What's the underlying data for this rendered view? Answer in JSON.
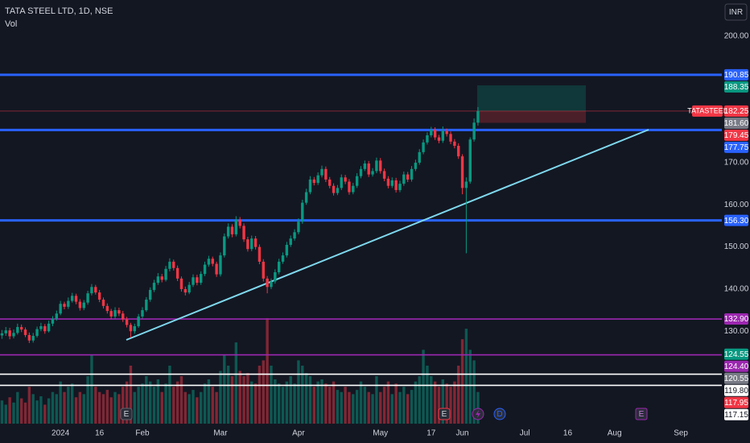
{
  "header": {
    "title": "TATA STEEL LTD, 1D, NSE",
    "indicator": "Vol",
    "currency": "INR"
  },
  "events": [
    {
      "label": "E"
    },
    {
      "label": "E"
    },
    {
      "label": "D"
    },
    {
      "label": "E"
    }
  ],
  "chart_data": {
    "type": "candlestick",
    "up_color": "#089981",
    "down_color": "#f23645",
    "ylim": [
      107.3,
      208.6
    ],
    "xlim": [
      -0.5,
      184.5
    ],
    "yticks": [
      {
        "value": 130,
        "label": "130.00"
      },
      {
        "value": 140,
        "label": "140.00"
      },
      {
        "value": 150,
        "label": "150.00"
      },
      {
        "value": 160,
        "label": "160.00"
      },
      {
        "value": 170,
        "label": "170.00"
      },
      {
        "value": 200,
        "label": "200.00"
      }
    ],
    "xticks": [
      {
        "value": 15,
        "label": "2024"
      },
      {
        "value": 25,
        "label": "16"
      },
      {
        "value": 36,
        "label": "Feb"
      },
      {
        "value": 56,
        "label": "Mar"
      },
      {
        "value": 76,
        "label": "Apr"
      },
      {
        "value": 97,
        "label": "May"
      },
      {
        "value": 110,
        "label": "17"
      },
      {
        "value": 118,
        "label": "Jun"
      },
      {
        "value": 134,
        "label": "Jul"
      },
      {
        "value": 145,
        "label": "16"
      },
      {
        "value": 157,
        "label": "Aug"
      },
      {
        "value": 174,
        "label": "Sep"
      }
    ],
    "levels": [
      {
        "value": 190.85,
        "label": "190.85",
        "color": "#2962ff",
        "line": "thick"
      },
      {
        "value": 188.35,
        "label": "188.35",
        "color": "#089981"
      },
      {
        "value": 182.25,
        "label": "182.25",
        "color": "#f23645",
        "line": "thin",
        "tag": "TATASTEEL"
      },
      {
        "value": 181.6,
        "label": "181.60",
        "color": "#787b86"
      },
      {
        "value": 179.45,
        "label": "179.45",
        "color": "#f23645"
      },
      {
        "value": 177.75,
        "label": "177.75",
        "color": "#2962ff",
        "line": "thick"
      },
      {
        "value": 156.3,
        "label": "156.30",
        "color": "#2962ff",
        "line": "thick"
      },
      {
        "value": 132.9,
        "label": "132.90",
        "color": "#9c27b0",
        "line": "medium"
      },
      {
        "value": 124.55,
        "label": "124.55",
        "color": "#089981"
      },
      {
        "value": 124.4,
        "label": "124.40",
        "color": "#9c27b0",
        "line": "medium"
      },
      {
        "value": 120.55,
        "label": "120.55",
        "color": "#787b86"
      },
      {
        "value": 119.8,
        "label": "119.80",
        "color": "#ffffff",
        "line": "medium"
      },
      {
        "value": 117.95,
        "label": "117.95",
        "color": "#f23645"
      },
      {
        "value": 117.15,
        "label": "117.15",
        "color": "#ffffff",
        "line": "medium"
      }
    ],
    "ohlc": [
      [
        129.0,
        130.3,
        128.2,
        129.5
      ],
      [
        129.5,
        131.0,
        128.9,
        130.2
      ],
      [
        130.2,
        130.8,
        128.1,
        128.8
      ],
      [
        128.8,
        130.4,
        128.3,
        129.6
      ],
      [
        129.6,
        131.8,
        129.2,
        131.0
      ],
      [
        131.0,
        131.6,
        129.8,
        130.4
      ],
      [
        130.4,
        130.9,
        128.6,
        129.1
      ],
      [
        129.1,
        129.7,
        127.2,
        127.8
      ],
      [
        127.8,
        129.6,
        127.3,
        128.9
      ],
      [
        128.9,
        131.1,
        128.5,
        130.5
      ],
      [
        130.5,
        132.0,
        130.0,
        131.2
      ],
      [
        131.2,
        131.7,
        129.4,
        130.0
      ],
      [
        130.0,
        132.5,
        129.7,
        131.8
      ],
      [
        131.8,
        133.6,
        131.2,
        133.0
      ],
      [
        133.0,
        134.9,
        132.5,
        134.2
      ],
      [
        134.2,
        137.2,
        133.8,
        136.5
      ],
      [
        136.5,
        137.0,
        135.2,
        135.8
      ],
      [
        135.8,
        138.0,
        135.3,
        137.2
      ],
      [
        137.2,
        139.1,
        136.8,
        138.4
      ],
      [
        138.4,
        138.9,
        136.4,
        137.0
      ],
      [
        137.0,
        137.6,
        134.9,
        135.5
      ],
      [
        135.5,
        137.4,
        135.0,
        136.8
      ],
      [
        136.8,
        139.6,
        136.3,
        139.0
      ],
      [
        139.0,
        141.2,
        138.5,
        140.5
      ],
      [
        140.5,
        141.0,
        138.7,
        139.2
      ],
      [
        139.2,
        139.8,
        136.9,
        137.5
      ],
      [
        137.5,
        138.0,
        135.4,
        136.0
      ],
      [
        136.0,
        136.6,
        134.2,
        134.8
      ],
      [
        134.8,
        135.3,
        132.9,
        133.5
      ],
      [
        133.5,
        135.7,
        133.0,
        135.0
      ],
      [
        135.0,
        135.6,
        133.6,
        134.2
      ],
      [
        134.2,
        134.8,
        132.2,
        132.8
      ],
      [
        132.8,
        133.4,
        130.9,
        131.5
      ],
      [
        131.5,
        132.0,
        128.5,
        130.0
      ],
      [
        130.0,
        131.8,
        129.4,
        131.2
      ],
      [
        131.2,
        134.1,
        130.8,
        133.5
      ],
      [
        133.5,
        135.7,
        133.0,
        135.0
      ],
      [
        135.0,
        138.1,
        134.6,
        137.5
      ],
      [
        137.5,
        140.4,
        137.0,
        139.8
      ],
      [
        139.8,
        142.2,
        139.3,
        141.5
      ],
      [
        141.5,
        143.8,
        141.0,
        143.0
      ],
      [
        143.0,
        143.6,
        141.6,
        142.2
      ],
      [
        142.2,
        145.5,
        141.8,
        144.8
      ],
      [
        144.8,
        147.3,
        144.2,
        146.5
      ],
      [
        146.5,
        147.0,
        144.4,
        145.0
      ],
      [
        145.0,
        145.6,
        141.9,
        142.5
      ],
      [
        142.5,
        143.0,
        139.4,
        140.0
      ],
      [
        140.0,
        140.6,
        138.5,
        139.2
      ],
      [
        139.2,
        141.7,
        138.8,
        141.0
      ],
      [
        141.0,
        143.5,
        140.5,
        142.8
      ],
      [
        142.8,
        143.4,
        140.9,
        141.5
      ],
      [
        141.5,
        144.2,
        141.0,
        143.6
      ],
      [
        143.6,
        146.5,
        143.1,
        145.8
      ],
      [
        145.8,
        147.9,
        145.3,
        147.2
      ],
      [
        147.2,
        147.7,
        145.4,
        146.0
      ],
      [
        146.0,
        146.5,
        142.9,
        143.5
      ],
      [
        143.5,
        148.7,
        143.0,
        148.0
      ],
      [
        148.0,
        153.2,
        147.5,
        152.5
      ],
      [
        152.5,
        155.6,
        152.0,
        154.8
      ],
      [
        154.8,
        155.4,
        152.3,
        153.0
      ],
      [
        153.0,
        157.3,
        152.5,
        156.5
      ],
      [
        156.5,
        157.1,
        154.4,
        155.0
      ],
      [
        155.0,
        155.6,
        151.2,
        151.8
      ],
      [
        151.8,
        152.4,
        148.9,
        149.5
      ],
      [
        149.5,
        152.7,
        149.0,
        152.0
      ],
      [
        152.0,
        152.6,
        149.4,
        150.0
      ],
      [
        150.0,
        150.6,
        145.9,
        146.5
      ],
      [
        146.5,
        147.1,
        141.8,
        142.5
      ],
      [
        142.5,
        143.1,
        139.0,
        140.5
      ],
      [
        140.5,
        142.5,
        140.0,
        141.8
      ],
      [
        141.8,
        144.7,
        141.3,
        144.0
      ],
      [
        144.0,
        147.2,
        143.5,
        146.5
      ],
      [
        146.5,
        148.7,
        146.0,
        148.0
      ],
      [
        148.0,
        151.2,
        147.5,
        150.5
      ],
      [
        150.5,
        152.7,
        150.0,
        152.0
      ],
      [
        152.0,
        154.2,
        151.5,
        153.5
      ],
      [
        153.5,
        156.8,
        153.0,
        156.0
      ],
      [
        156.0,
        161.2,
        155.5,
        160.5
      ],
      [
        160.5,
        163.8,
        160.0,
        163.0
      ],
      [
        163.0,
        166.8,
        162.5,
        166.0
      ],
      [
        166.0,
        166.6,
        164.6,
        165.2
      ],
      [
        165.2,
        167.7,
        164.7,
        167.0
      ],
      [
        167.0,
        169.3,
        166.5,
        168.5
      ],
      [
        168.5,
        169.1,
        165.4,
        166.0
      ],
      [
        166.0,
        166.6,
        163.9,
        164.5
      ],
      [
        164.5,
        165.1,
        162.2,
        162.8
      ],
      [
        162.8,
        164.7,
        162.3,
        164.0
      ],
      [
        164.0,
        167.2,
        163.5,
        166.5
      ],
      [
        166.5,
        167.1,
        164.9,
        165.5
      ],
      [
        165.5,
        166.1,
        162.4,
        163.0
      ],
      [
        163.0,
        165.2,
        162.5,
        164.5
      ],
      [
        164.5,
        167.5,
        164.0,
        166.8
      ],
      [
        166.8,
        169.2,
        166.3,
        168.5
      ],
      [
        168.5,
        170.5,
        168.0,
        169.8
      ],
      [
        169.8,
        170.4,
        166.6,
        167.2
      ],
      [
        167.2,
        168.7,
        166.7,
        168.0
      ],
      [
        168.0,
        171.2,
        167.5,
        170.5
      ],
      [
        170.5,
        171.1,
        167.4,
        168.0
      ],
      [
        168.0,
        168.6,
        165.6,
        166.2
      ],
      [
        166.2,
        166.8,
        163.9,
        164.5
      ],
      [
        164.5,
        166.5,
        164.0,
        165.8
      ],
      [
        165.8,
        166.4,
        162.9,
        163.5
      ],
      [
        163.5,
        165.7,
        163.0,
        165.0
      ],
      [
        165.0,
        167.9,
        164.5,
        167.2
      ],
      [
        167.2,
        167.8,
        165.4,
        166.0
      ],
      [
        166.0,
        169.2,
        165.5,
        168.5
      ],
      [
        168.5,
        170.7,
        168.0,
        170.0
      ],
      [
        170.0,
        173.2,
        169.5,
        172.5
      ],
      [
        172.5,
        175.5,
        172.0,
        174.8
      ],
      [
        174.8,
        177.2,
        174.3,
        176.5
      ],
      [
        176.5,
        178.5,
        176.0,
        177.8
      ],
      [
        177.8,
        178.4,
        175.4,
        176.0
      ],
      [
        176.0,
        176.6,
        174.6,
        175.2
      ],
      [
        175.2,
        178.6,
        174.7,
        177.5
      ],
      [
        177.5,
        178.1,
        176.2,
        176.8
      ],
      [
        176.8,
        177.4,
        174.4,
        175.0
      ],
      [
        175.0,
        175.6,
        173.4,
        174.0
      ],
      [
        174.0,
        174.6,
        170.9,
        171.5
      ],
      [
        171.5,
        172.0,
        162.5,
        164.0
      ],
      [
        164.0,
        166.5,
        148.5,
        165.5
      ],
      [
        165.5,
        176.0,
        165.0,
        175.5
      ],
      [
        175.5,
        180.5,
        175.0,
        179.5
      ],
      [
        179.5,
        183.2,
        178.8,
        182.25
      ]
    ],
    "volume": [
      22,
      18,
      25,
      20,
      30,
      24,
      20,
      35,
      28,
      22,
      26,
      18,
      24,
      30,
      28,
      40,
      30,
      35,
      38,
      25,
      30,
      28,
      45,
      65,
      35,
      30,
      28,
      32,
      25,
      30,
      28,
      35,
      40,
      55,
      30,
      35,
      38,
      45,
      40,
      35,
      42,
      30,
      38,
      55,
      35,
      40,
      45,
      30,
      28,
      32,
      25,
      30,
      38,
      42,
      35,
      30,
      50,
      65,
      55,
      45,
      77,
      50,
      45,
      48,
      40,
      38,
      55,
      60,
      100,
      55,
      42,
      38,
      35,
      40,
      45,
      38,
      60,
      55,
      48,
      45,
      35,
      40,
      42,
      38,
      35,
      40,
      32,
      30,
      35,
      30,
      28,
      32,
      40,
      35,
      30,
      28,
      45,
      30,
      35,
      40,
      28,
      38,
      30,
      35,
      28,
      32,
      40,
      45,
      70,
      55,
      45,
      40,
      35,
      42,
      38,
      35,
      40,
      55,
      80,
      90,
      70,
      60,
      30
    ],
    "volume_max": 100
  }
}
